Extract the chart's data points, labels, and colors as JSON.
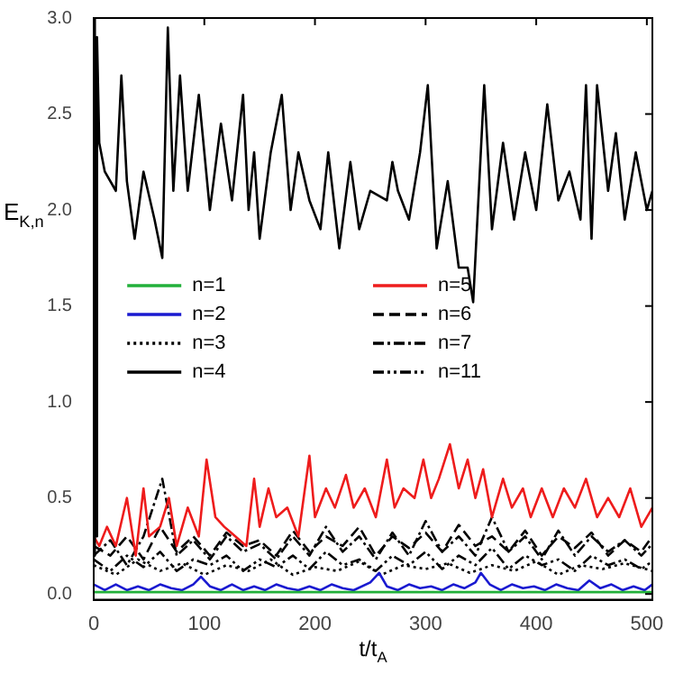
{
  "chart_data": {
    "type": "line",
    "xlabel": "t/t$_{A}$",
    "ylabel": "E$_{K,n}$",
    "xlim": [
      0,
      505
    ],
    "ylim": [
      -0.03,
      3.0
    ],
    "xticks": [
      0,
      100,
      200,
      300,
      400,
      500
    ],
    "yticks": [
      {
        "value": 0,
        "label": "0.0"
      },
      {
        "value": 0.5,
        "label": "0.5"
      },
      {
        "value": 1,
        "label": "1.0"
      },
      {
        "value": 1.5,
        "label": "1.5"
      },
      {
        "value": 2,
        "label": "2.0"
      },
      {
        "value": 2.5,
        "label": "2.5"
      },
      {
        "value": 3,
        "label": "3.0"
      }
    ],
    "grid": false,
    "legend": "center left",
    "marker": "none",
    "series": [
      {
        "name": "n=1",
        "color": "#22b03a",
        "line_style": "solid",
        "x": [
          0,
          50,
          100,
          150,
          200,
          250,
          300,
          350,
          400,
          450,
          505
        ],
        "values": [
          0.01,
          0.01,
          0.01,
          0.01,
          0.01,
          0.01,
          0.01,
          0.01,
          0.01,
          0.01,
          0.01
        ]
      },
      {
        "name": "n=2",
        "color": "#1a1ad0",
        "line_style": "solid",
        "x": [
          0,
          10,
          20,
          30,
          40,
          50,
          60,
          70,
          80,
          90,
          97,
          105,
          115,
          125,
          135,
          145,
          155,
          165,
          175,
          185,
          195,
          205,
          215,
          225,
          235,
          250,
          258,
          265,
          275,
          285,
          295,
          305,
          315,
          325,
          335,
          345,
          350,
          358,
          368,
          378,
          388,
          398,
          408,
          418,
          428,
          438,
          448,
          458,
          468,
          478,
          488,
          498,
          505
        ],
        "values": [
          0.05,
          0.02,
          0.05,
          0.02,
          0.04,
          0.02,
          0.05,
          0.03,
          0.02,
          0.05,
          0.09,
          0.04,
          0.02,
          0.05,
          0.02,
          0.04,
          0.02,
          0.05,
          0.03,
          0.02,
          0.04,
          0.02,
          0.05,
          0.03,
          0.02,
          0.06,
          0.11,
          0.04,
          0.02,
          0.05,
          0.03,
          0.04,
          0.02,
          0.05,
          0.03,
          0.06,
          0.11,
          0.05,
          0.02,
          0.05,
          0.03,
          0.04,
          0.02,
          0.05,
          0.03,
          0.02,
          0.07,
          0.03,
          0.05,
          0.02,
          0.04,
          0.02,
          0.05
        ]
      },
      {
        "name": "n=3",
        "color": "#000000",
        "line_style": "dotted",
        "x": [
          0,
          20,
          40,
          60,
          80,
          100,
          120,
          140,
          160,
          180,
          200,
          220,
          240,
          260,
          280,
          300,
          320,
          340,
          360,
          380,
          400,
          420,
          440,
          460,
          480,
          505
        ],
        "values": [
          0.15,
          0.1,
          0.18,
          0.12,
          0.16,
          0.1,
          0.15,
          0.12,
          0.18,
          0.1,
          0.14,
          0.12,
          0.17,
          0.1,
          0.15,
          0.13,
          0.16,
          0.11,
          0.15,
          0.12,
          0.17,
          0.1,
          0.15,
          0.13,
          0.16,
          0.12
        ]
      },
      {
        "name": "n=4",
        "color": "#000000",
        "line_style": "solid",
        "x": [
          0,
          1,
          2,
          3,
          5,
          10,
          20,
          25,
          30,
          37,
          45,
          55,
          62,
          67,
          72,
          78,
          85,
          95,
          105,
          115,
          125,
          135,
          140,
          145,
          150,
          160,
          170,
          178,
          185,
          195,
          205,
          212,
          222,
          232,
          240,
          250,
          265,
          270,
          275,
          285,
          295,
          302,
          310,
          320,
          330,
          338,
          343,
          353,
          360,
          370,
          380,
          390,
          400,
          410,
          420,
          430,
          440,
          445,
          450,
          455,
          465,
          472,
          480,
          490,
          500,
          505
        ],
        "values": [
          0.2,
          3.0,
          0.3,
          2.9,
          2.35,
          2.2,
          2.1,
          2.7,
          2.15,
          1.85,
          2.2,
          1.95,
          1.75,
          2.95,
          2.1,
          2.7,
          2.1,
          2.6,
          2.0,
          2.45,
          2.05,
          2.6,
          2.0,
          2.3,
          1.85,
          2.3,
          2.6,
          2.0,
          2.3,
          2.05,
          1.9,
          2.3,
          1.8,
          2.25,
          1.9,
          2.1,
          2.05,
          2.25,
          2.1,
          1.95,
          2.3,
          2.65,
          1.8,
          2.15,
          1.7,
          1.7,
          1.52,
          2.65,
          1.9,
          2.35,
          1.95,
          2.3,
          2.0,
          2.55,
          2.05,
          2.2,
          1.95,
          2.65,
          1.85,
          2.65,
          2.1,
          2.4,
          1.95,
          2.3,
          2.0,
          2.1
        ]
      },
      {
        "name": "n=5",
        "color": "#ee1c1c",
        "line_style": "solid",
        "x": [
          0,
          5,
          12,
          20,
          30,
          38,
          45,
          50,
          60,
          68,
          75,
          85,
          95,
          102,
          110,
          118,
          128,
          138,
          145,
          150,
          158,
          165,
          175,
          185,
          195,
          200,
          210,
          218,
          228,
          235,
          245,
          255,
          265,
          272,
          280,
          290,
          298,
          305,
          312,
          322,
          330,
          338,
          345,
          352,
          360,
          370,
          378,
          388,
          395,
          405,
          415,
          425,
          435,
          445,
          455,
          465,
          475,
          485,
          495,
          505
        ],
        "values": [
          0.3,
          0.25,
          0.35,
          0.25,
          0.5,
          0.2,
          0.55,
          0.3,
          0.35,
          0.5,
          0.25,
          0.45,
          0.3,
          0.7,
          0.4,
          0.35,
          0.3,
          0.25,
          0.6,
          0.35,
          0.55,
          0.4,
          0.45,
          0.3,
          0.72,
          0.4,
          0.55,
          0.45,
          0.62,
          0.45,
          0.55,
          0.4,
          0.7,
          0.45,
          0.55,
          0.5,
          0.7,
          0.5,
          0.6,
          0.78,
          0.55,
          0.7,
          0.5,
          0.65,
          0.4,
          0.6,
          0.45,
          0.55,
          0.4,
          0.55,
          0.4,
          0.55,
          0.45,
          0.6,
          0.4,
          0.5,
          0.4,
          0.55,
          0.35,
          0.45
        ]
      },
      {
        "name": "n=6",
        "color": "#000000",
        "line_style": "dashed",
        "x": [
          0,
          15,
          30,
          45,
          60,
          75,
          90,
          105,
          120,
          135,
          150,
          165,
          180,
          195,
          210,
          225,
          240,
          255,
          270,
          285,
          300,
          315,
          330,
          345,
          360,
          375,
          390,
          405,
          420,
          435,
          450,
          465,
          480,
          495,
          505
        ],
        "values": [
          0.25,
          0.2,
          0.3,
          0.18,
          0.35,
          0.22,
          0.3,
          0.2,
          0.32,
          0.25,
          0.28,
          0.2,
          0.33,
          0.22,
          0.3,
          0.25,
          0.35,
          0.2,
          0.3,
          0.24,
          0.32,
          0.22,
          0.36,
          0.25,
          0.3,
          0.22,
          0.33,
          0.2,
          0.3,
          0.24,
          0.32,
          0.2,
          0.28,
          0.22,
          0.3
        ]
      },
      {
        "name": "n=7",
        "color": "#000000",
        "line_style": "dashdot",
        "x": [
          0,
          15,
          30,
          45,
          62,
          75,
          90,
          105,
          120,
          135,
          150,
          165,
          180,
          195,
          210,
          225,
          240,
          255,
          270,
          285,
          300,
          315,
          330,
          345,
          360,
          375,
          390,
          405,
          420,
          435,
          450,
          465,
          480,
          495,
          505
        ],
        "values": [
          0.2,
          0.28,
          0.15,
          0.3,
          0.6,
          0.2,
          0.28,
          0.18,
          0.3,
          0.22,
          0.26,
          0.18,
          0.3,
          0.2,
          0.35,
          0.22,
          0.3,
          0.18,
          0.32,
          0.2,
          0.38,
          0.22,
          0.3,
          0.2,
          0.4,
          0.22,
          0.3,
          0.18,
          0.33,
          0.2,
          0.3,
          0.22,
          0.28,
          0.2,
          0.26
        ]
      },
      {
        "name": "n=11",
        "color": "#000000",
        "line_style": "dashdotdot",
        "x": [
          0,
          15,
          30,
          45,
          60,
          75,
          90,
          105,
          120,
          135,
          150,
          165,
          180,
          195,
          210,
          225,
          240,
          255,
          270,
          285,
          300,
          315,
          330,
          345,
          360,
          375,
          390,
          405,
          420,
          435,
          450,
          465,
          480,
          495,
          505
        ],
        "values": [
          0.18,
          0.12,
          0.2,
          0.14,
          0.22,
          0.12,
          0.18,
          0.15,
          0.2,
          0.12,
          0.18,
          0.14,
          0.2,
          0.13,
          0.22,
          0.15,
          0.18,
          0.12,
          0.2,
          0.15,
          0.22,
          0.13,
          0.2,
          0.15,
          0.24,
          0.13,
          0.2,
          0.15,
          0.18,
          0.12,
          0.2,
          0.15,
          0.18,
          0.13,
          0.17
        ]
      }
    ]
  }
}
